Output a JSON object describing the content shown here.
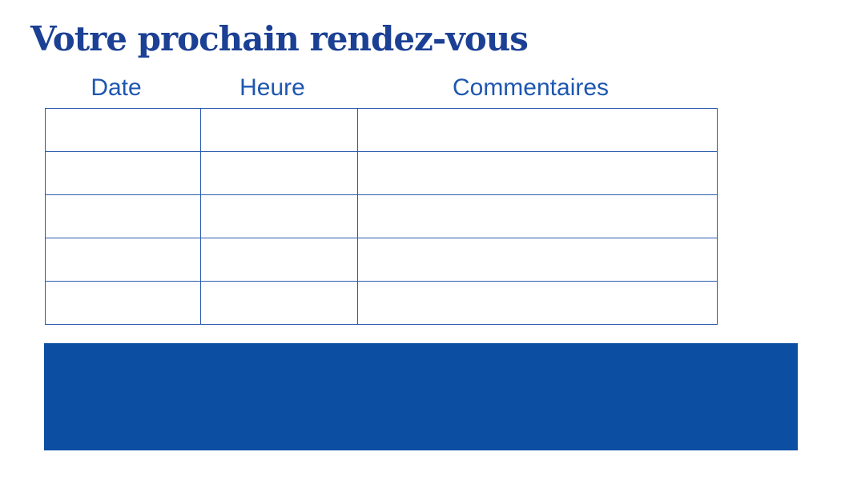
{
  "title": {
    "text": "Votre prochain rendez-vous"
  },
  "table": {
    "columns": [
      "Date",
      "Heure",
      "Commentaires"
    ],
    "rows": [
      [
        "",
        "",
        ""
      ],
      [
        "",
        "",
        ""
      ],
      [
        "",
        "",
        ""
      ],
      [
        "",
        "",
        ""
      ],
      [
        "",
        "",
        ""
      ]
    ]
  },
  "footer_block": {
    "text": ""
  },
  "colors": {
    "title_text": "#1b4094",
    "header_text": "#1e57b0",
    "table_border": "#2b5cab",
    "block_fill": "#0c4ea2",
    "background": "#ffffff"
  }
}
